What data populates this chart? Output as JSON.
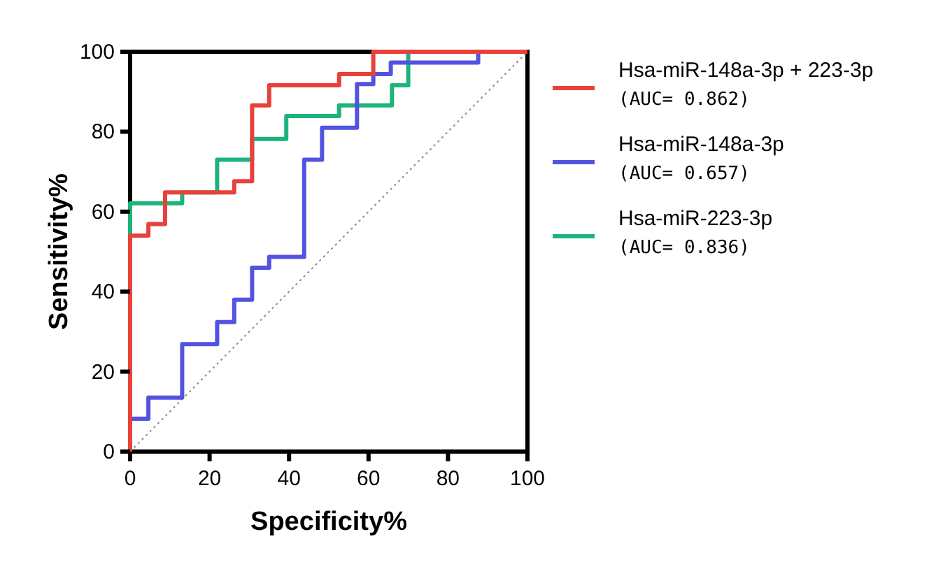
{
  "chart_data": {
    "type": "step",
    "xlabel": "Specificity%",
    "ylabel": "Sensitivity%",
    "xlim": [
      0,
      100
    ],
    "ylim": [
      0,
      100
    ],
    "xticks": [
      0,
      20,
      40,
      60,
      80,
      100
    ],
    "yticks": [
      0,
      20,
      40,
      60,
      80,
      100
    ],
    "grid": false,
    "legend": "right",
    "series": [
      {
        "name": "Hsa-miR-148a-3p + 223-3p\n(AUC= 0.862)",
        "color": "#e8413c",
        "x": [
          0,
          0,
          4.6,
          8.8,
          26.2,
          30.7,
          35,
          52.6,
          61.2,
          100
        ],
        "values": [
          0,
          54,
          56.9,
          64.8,
          67.6,
          86.6,
          91.6,
          94.4,
          100,
          100
        ]
      },
      {
        "name": "Hsa-miR-148a-3p\n(AUC= 0.657)",
        "color": "#5452e0",
        "x": [
          0,
          0,
          4.6,
          13.1,
          21.9,
          26.2,
          30.7,
          35,
          43.8,
          48.3,
          57.1,
          61.2,
          65.6,
          87.6,
          100
        ],
        "values": [
          0,
          8.2,
          13.5,
          26.9,
          32.4,
          38,
          46,
          48.7,
          73,
          81,
          91.9,
          94.4,
          97.3,
          100,
          100
        ]
      },
      {
        "name": "Hsa-miR-223-3p\n(AUC= 0.836)",
        "color": "#1db47a",
        "x": [
          0,
          0,
          13.1,
          21.9,
          30.7,
          39.3,
          52.6,
          65.9,
          70,
          100
        ],
        "values": [
          0,
          62.1,
          64.8,
          73,
          78.2,
          83.9,
          86.6,
          91.6,
          100,
          100
        ]
      },
      {
        "type": "line",
        "color": "#888888",
        "line_style": "dotted",
        "x": [
          0,
          100
        ],
        "values": [
          0,
          100
        ]
      }
    ]
  }
}
